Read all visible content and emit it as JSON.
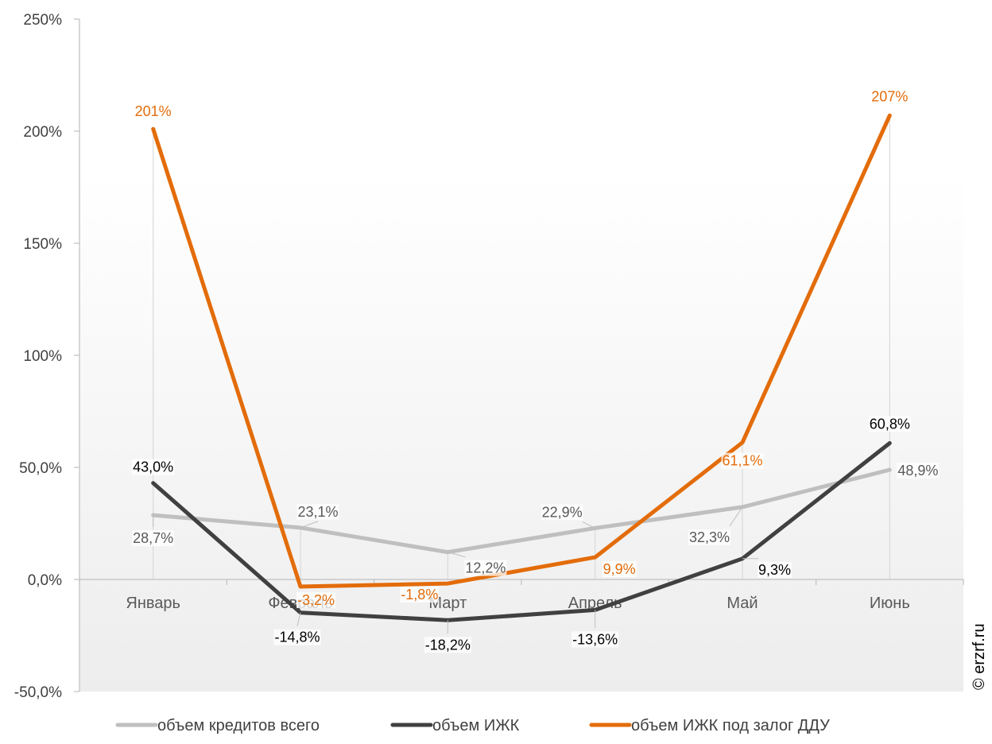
{
  "chart_data": {
    "type": "line",
    "categories": [
      "Январь",
      "Февраль",
      "Март",
      "Апрель",
      "Май",
      "Июнь"
    ],
    "y_ticks": [
      "250%",
      "200%",
      "150%",
      "100%",
      "50,0%",
      "0,0%",
      "-50,0%"
    ],
    "ylim": [
      -50,
      250
    ],
    "ystep": 50,
    "grid": false,
    "legend_position": "bottom",
    "series": [
      {
        "name": "объем кредитов всего",
        "color": "#bfbfbf",
        "values": [
          28.7,
          23.1,
          12.2,
          22.9,
          32.3,
          48.9
        ],
        "labels": [
          "28,7%",
          "23,1%",
          "12,2%",
          "22,9%",
          "32,3%",
          "48,9%"
        ]
      },
      {
        "name": "объем ИЖК",
        "color": "#404040",
        "values": [
          43.0,
          -14.8,
          -18.2,
          -13.6,
          9.3,
          60.8
        ],
        "labels": [
          "43,0%",
          "-14,8%",
          "-18,2%",
          "-13,6%",
          "9,3%",
          "60,8%"
        ]
      },
      {
        "name": "объем ИЖК под залог ДДУ",
        "color": "#e36c0a",
        "values": [
          201,
          -3.2,
          -1.8,
          9.9,
          61.1,
          207
        ],
        "labels": [
          "201%",
          "-3,2%",
          "-1,8%",
          "9,9%",
          "61,1%",
          "207%"
        ]
      }
    ]
  },
  "watermark": "© erzrf.ru"
}
